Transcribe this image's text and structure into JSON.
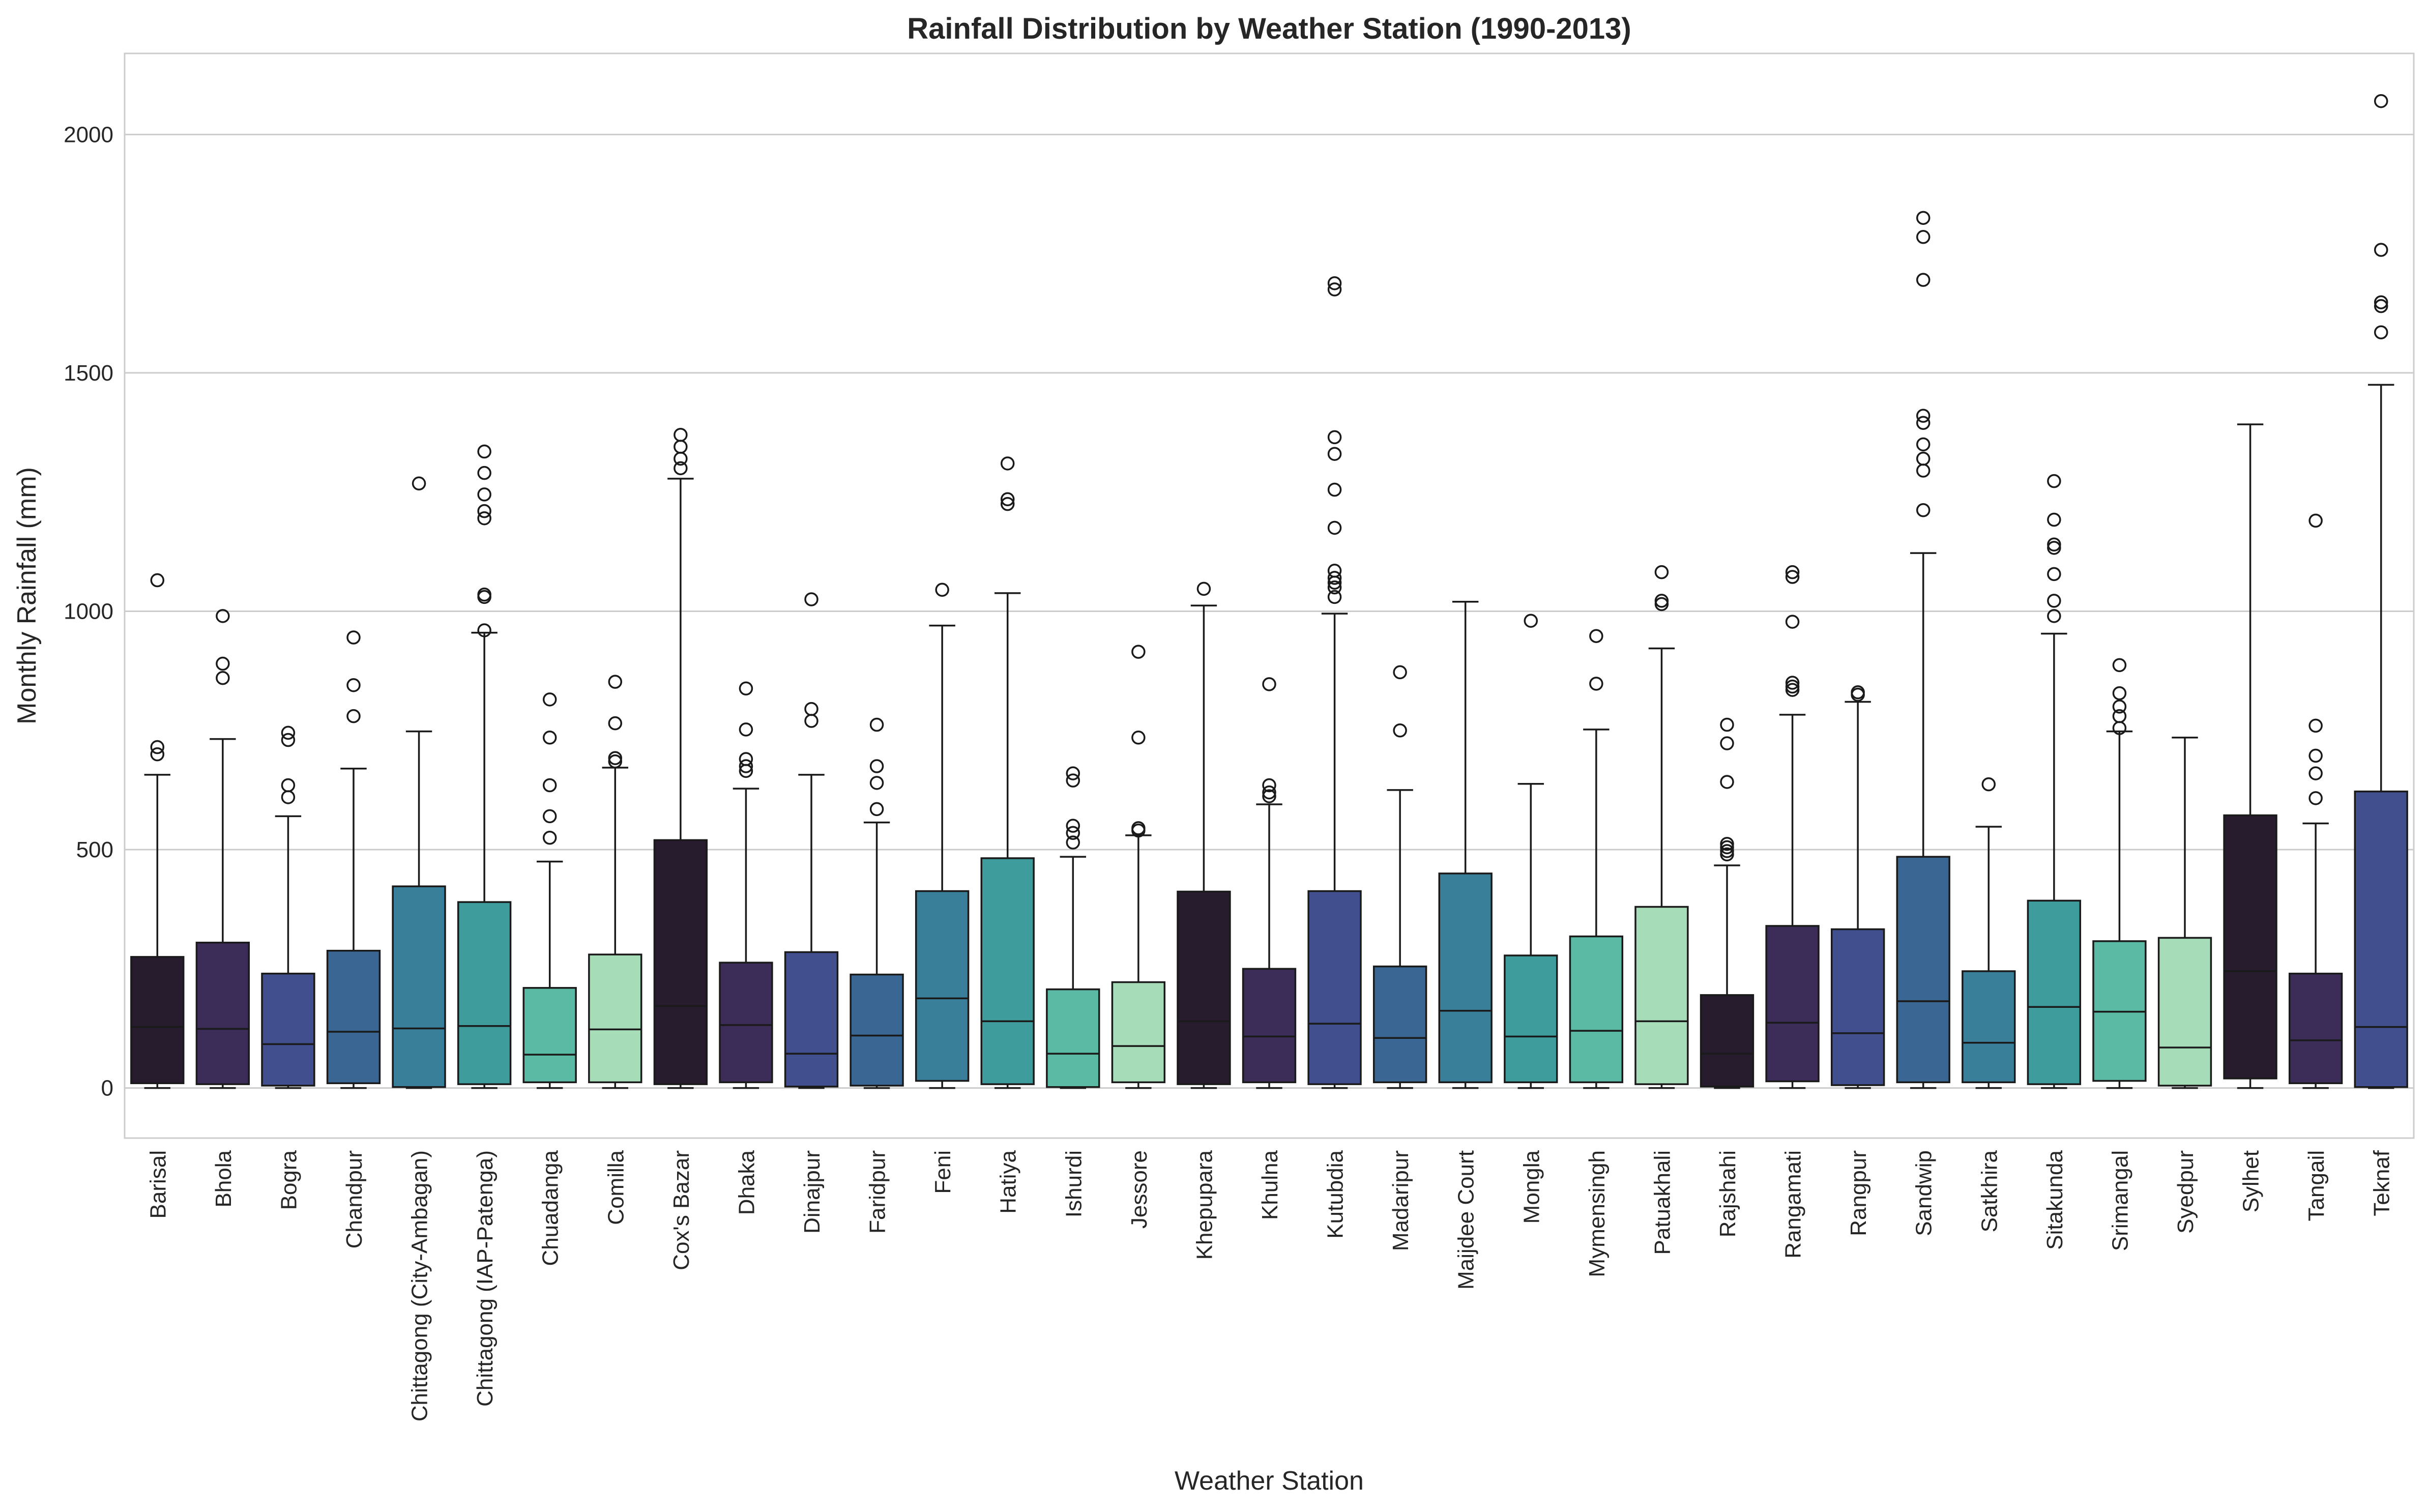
{
  "chart_data": {
    "type": "box",
    "title": "Rainfall Distribution by Weather Station (1990-2013)",
    "xlabel": "Weather Station",
    "ylabel": "Monthly Rainfall (mm)",
    "ylim": [
      -105,
      2170
    ],
    "yticks": [
      0,
      500,
      1000,
      1500,
      2000
    ],
    "grid": true,
    "categories": [
      "Barisal",
      "Bhola",
      "Bogra",
      "Chandpur",
      "Chittagong (City-Ambagan)",
      "Chittagong (IAP-Patenga)",
      "Chuadanga",
      "Comilla",
      "Cox's Bazar",
      "Dhaka",
      "Dinajpur",
      "Faridpur",
      "Feni",
      "Hatiya",
      "Ishurdi",
      "Jessore",
      "Khepupara",
      "Khulna",
      "Kutubdia",
      "Madaripur",
      "Maijdee Court",
      "Mongla",
      "Mymensingh",
      "Patuakhali",
      "Rajshahi",
      "Rangamati",
      "Rangpur",
      "Sandwip",
      "Satkhira",
      "Sitakunda",
      "Srimangal",
      "Syedpur",
      "Sylhet",
      "Tangail",
      "Teknaf"
    ],
    "colors": [
      "#271b2e",
      "#3b2d58",
      "#414f8e",
      "#3a6694",
      "#3a7f9a",
      "#3f9c9d",
      "#5bbaa3",
      "#a6dcb7",
      "#271b2e",
      "#3b2d58",
      "#414f8e",
      "#3a6694",
      "#3a7f9a",
      "#3f9c9d",
      "#5bbaa3",
      "#a6dcb7",
      "#271b2e",
      "#3b2d58",
      "#414f8e",
      "#3a6694",
      "#3a7f9a",
      "#3f9c9d",
      "#5bbaa3",
      "#a6dcb7",
      "#271b2e",
      "#3b2d58",
      "#414f8e",
      "#3a6694",
      "#3a7f9a",
      "#3f9c9d",
      "#5bbaa3",
      "#a6dcb7",
      "#271b2e",
      "#3b2d58",
      "#414f8e"
    ],
    "stats": [
      {
        "whislo": 0,
        "q1": 10,
        "med": 128,
        "q3": 275,
        "whishi": 657,
        "fliers": [
          700,
          715,
          1065
        ]
      },
      {
        "whislo": 0,
        "q1": 8,
        "med": 124,
        "q3": 305,
        "whishi": 732,
        "fliers": [
          860,
          890,
          990
        ]
      },
      {
        "whislo": 0,
        "q1": 5,
        "med": 92,
        "q3": 240,
        "whishi": 570,
        "fliers": [
          610,
          635,
          730,
          745
        ]
      },
      {
        "whislo": 0,
        "q1": 10,
        "med": 118,
        "q3": 288,
        "whishi": 670,
        "fliers": [
          780,
          845,
          945
        ]
      },
      {
        "whislo": 0,
        "q1": 2,
        "med": 125,
        "q3": 423,
        "whishi": 748,
        "fliers": [
          1268
        ]
      },
      {
        "whislo": 0,
        "q1": 8,
        "med": 130,
        "q3": 390,
        "whishi": 955,
        "fliers": [
          960,
          1030,
          1035,
          1195,
          1210,
          1245,
          1290,
          1335
        ]
      },
      {
        "whislo": 0,
        "q1": 12,
        "med": 70,
        "q3": 210,
        "whishi": 475,
        "fliers": [
          525,
          570,
          635,
          735,
          815
        ]
      },
      {
        "whislo": 0,
        "q1": 12,
        "med": 123,
        "q3": 280,
        "whishi": 672,
        "fliers": [
          685,
          692,
          765,
          852
        ]
      },
      {
        "whislo": 0,
        "q1": 8,
        "med": 172,
        "q3": 520,
        "whishi": 1278,
        "fliers": [
          1300,
          1320,
          1345,
          1370
        ]
      },
      {
        "whislo": 0,
        "q1": 12,
        "med": 132,
        "q3": 263,
        "whishi": 628,
        "fliers": [
          665,
          675,
          690,
          752,
          838
        ]
      },
      {
        "whislo": 0,
        "q1": 3,
        "med": 72,
        "q3": 285,
        "whishi": 657,
        "fliers": [
          770,
          795,
          1025
        ]
      },
      {
        "whislo": 0,
        "q1": 5,
        "med": 110,
        "q3": 238,
        "whishi": 557,
        "fliers": [
          585,
          640,
          675,
          762
        ]
      },
      {
        "whislo": 0,
        "q1": 15,
        "med": 188,
        "q3": 413,
        "whishi": 970,
        "fliers": [
          1045
        ]
      },
      {
        "whislo": 0,
        "q1": 8,
        "med": 140,
        "q3": 482,
        "whishi": 1038,
        "fliers": [
          1225,
          1235,
          1310
        ]
      },
      {
        "whislo": 0,
        "q1": 2,
        "med": 72,
        "q3": 207,
        "whishi": 485,
        "fliers": [
          515,
          535,
          550,
          645,
          660
        ]
      },
      {
        "whislo": 0,
        "q1": 12,
        "med": 88,
        "q3": 222,
        "whishi": 530,
        "fliers": [
          540,
          545,
          735,
          915
        ]
      },
      {
        "whislo": 0,
        "q1": 8,
        "med": 140,
        "q3": 412,
        "whishi": 1012,
        "fliers": [
          1047
        ]
      },
      {
        "whislo": 0,
        "q1": 12,
        "med": 108,
        "q3": 250,
        "whishi": 595,
        "fliers": [
          612,
          620,
          635,
          847
        ]
      },
      {
        "whislo": 0,
        "q1": 8,
        "med": 135,
        "q3": 413,
        "whishi": 995,
        "fliers": [
          1030,
          1050,
          1060,
          1070,
          1085,
          1175,
          1255,
          1330,
          1365,
          1675,
          1688
        ]
      },
      {
        "whislo": 0,
        "q1": 12,
        "med": 105,
        "q3": 255,
        "whishi": 625,
        "fliers": [
          750,
          872
        ]
      },
      {
        "whislo": 0,
        "q1": 12,
        "med": 162,
        "q3": 450,
        "whishi": 1020,
        "fliers": []
      },
      {
        "whislo": 0,
        "q1": 12,
        "med": 108,
        "q3": 278,
        "whishi": 638,
        "fliers": [
          980
        ]
      },
      {
        "whislo": 0,
        "q1": 12,
        "med": 120,
        "q3": 318,
        "whishi": 752,
        "fliers": [
          848,
          948
        ]
      },
      {
        "whislo": 0,
        "q1": 8,
        "med": 140,
        "q3": 380,
        "whishi": 922,
        "fliers": [
          1015,
          1022,
          1082
        ]
      },
      {
        "whislo": 0,
        "q1": 3,
        "med": 72,
        "q3": 195,
        "whishi": 467,
        "fliers": [
          490,
          497,
          505,
          512,
          642,
          723,
          762
        ]
      },
      {
        "whislo": 0,
        "q1": 14,
        "med": 137,
        "q3": 340,
        "whishi": 783,
        "fliers": [
          835,
          842,
          850,
          978,
          1072,
          1082
        ]
      },
      {
        "whislo": 0,
        "q1": 6,
        "med": 115,
        "q3": 333,
        "whishi": 810,
        "fliers": [
          825,
          830
        ]
      },
      {
        "whislo": 0,
        "q1": 12,
        "med": 182,
        "q3": 485,
        "whishi": 1122,
        "fliers": [
          1212,
          1295,
          1320,
          1350,
          1395,
          1410,
          1695,
          1785,
          1825
        ]
      },
      {
        "whislo": 0,
        "q1": 12,
        "med": 95,
        "q3": 245,
        "whishi": 548,
        "fliers": [
          637
        ]
      },
      {
        "whislo": 0,
        "q1": 8,
        "med": 170,
        "q3": 393,
        "whishi": 953,
        "fliers": [
          990,
          1022,
          1078,
          1133,
          1140,
          1192,
          1273
        ]
      },
      {
        "whislo": 0,
        "q1": 15,
        "med": 160,
        "q3": 308,
        "whishi": 748,
        "fliers": [
          755,
          780,
          800,
          828,
          887
        ]
      },
      {
        "whislo": 0,
        "q1": 5,
        "med": 85,
        "q3": 315,
        "whishi": 735,
        "fliers": []
      },
      {
        "whislo": 0,
        "q1": 20,
        "med": 245,
        "q3": 572,
        "whishi": 1392,
        "fliers": []
      },
      {
        "whislo": 0,
        "q1": 10,
        "med": 100,
        "q3": 240,
        "whishi": 555,
        "fliers": [
          608,
          660,
          697,
          760,
          1190
        ]
      },
      {
        "whislo": 0,
        "q1": 2,
        "med": 128,
        "q3": 622,
        "whishi": 1475,
        "fliers": [
          1585,
          1640,
          1648,
          1758,
          2070
        ]
      }
    ]
  }
}
